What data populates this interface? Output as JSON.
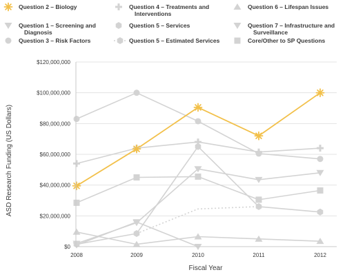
{
  "chart_data": {
    "type": "line",
    "xlabel": "Fiscal Year",
    "ylabel": "ASD Research Funding (US Dollars)",
    "categories": [
      "2008",
      "2009",
      "2010",
      "2011",
      "2012"
    ],
    "ylim": [
      0,
      120000000
    ],
    "yticks": [
      0,
      20000000,
      40000000,
      60000000,
      80000000,
      100000000,
      120000000
    ],
    "ytick_labels": [
      "$0",
      "$20,000,000",
      "$40,000,000",
      "$60,000,000",
      "$80,000,000",
      "$100,000,000",
      "$120,000,000"
    ],
    "grid": "horizontal",
    "legend_position": "top",
    "colors": {
      "highlight": "#f2c04a",
      "muted": "#d3d3d3",
      "axis": "#c8c8c8",
      "text": "#3a3a3a"
    },
    "series": [
      {
        "name": "Question 1 – Screening and Diagnosis",
        "marker": "triangle-down",
        "values": [
          1000000,
          16000000,
          0,
          null,
          null
        ]
      },
      {
        "name": "Question 2 – Biology",
        "marker": "asterisk",
        "highlight": true,
        "values": [
          39500000,
          63500000,
          90500000,
          72000000,
          100000000
        ]
      },
      {
        "name": "Question 3 – Risk Factors",
        "marker": "circle",
        "values": [
          83000000,
          100000000,
          81500000,
          60500000,
          57000000
        ]
      },
      {
        "name": "Question 4 – Treatments and Interventions",
        "marker": "plus",
        "values": [
          54000000,
          64000000,
          68000000,
          61500000,
          64000000
        ]
      },
      {
        "name": "Question 5 – Services",
        "marker": "hexagon",
        "values": [
          1500000,
          8500000,
          65000000,
          26000000,
          22500000
        ]
      },
      {
        "name": "Question 5 – Estimated Services",
        "marker": "hexagon",
        "dashed": true,
        "values": [
          null,
          8500000,
          24500000,
          26000000,
          null
        ]
      },
      {
        "name": "Question 6 – Lifespan Issues",
        "marker": "triangle",
        "values": [
          9500000,
          1500000,
          6500000,
          5000000,
          3500000
        ]
      },
      {
        "name": "Question 7 – Infrastructure and Surveillance",
        "marker": "triangle-down",
        "values": [
          2000000,
          15500000,
          50500000,
          43500000,
          48000000
        ]
      },
      {
        "name": "Core/Other to SP Questions",
        "marker": "square",
        "values": [
          28500000,
          45000000,
          45500000,
          30500000,
          36500000
        ]
      }
    ]
  }
}
